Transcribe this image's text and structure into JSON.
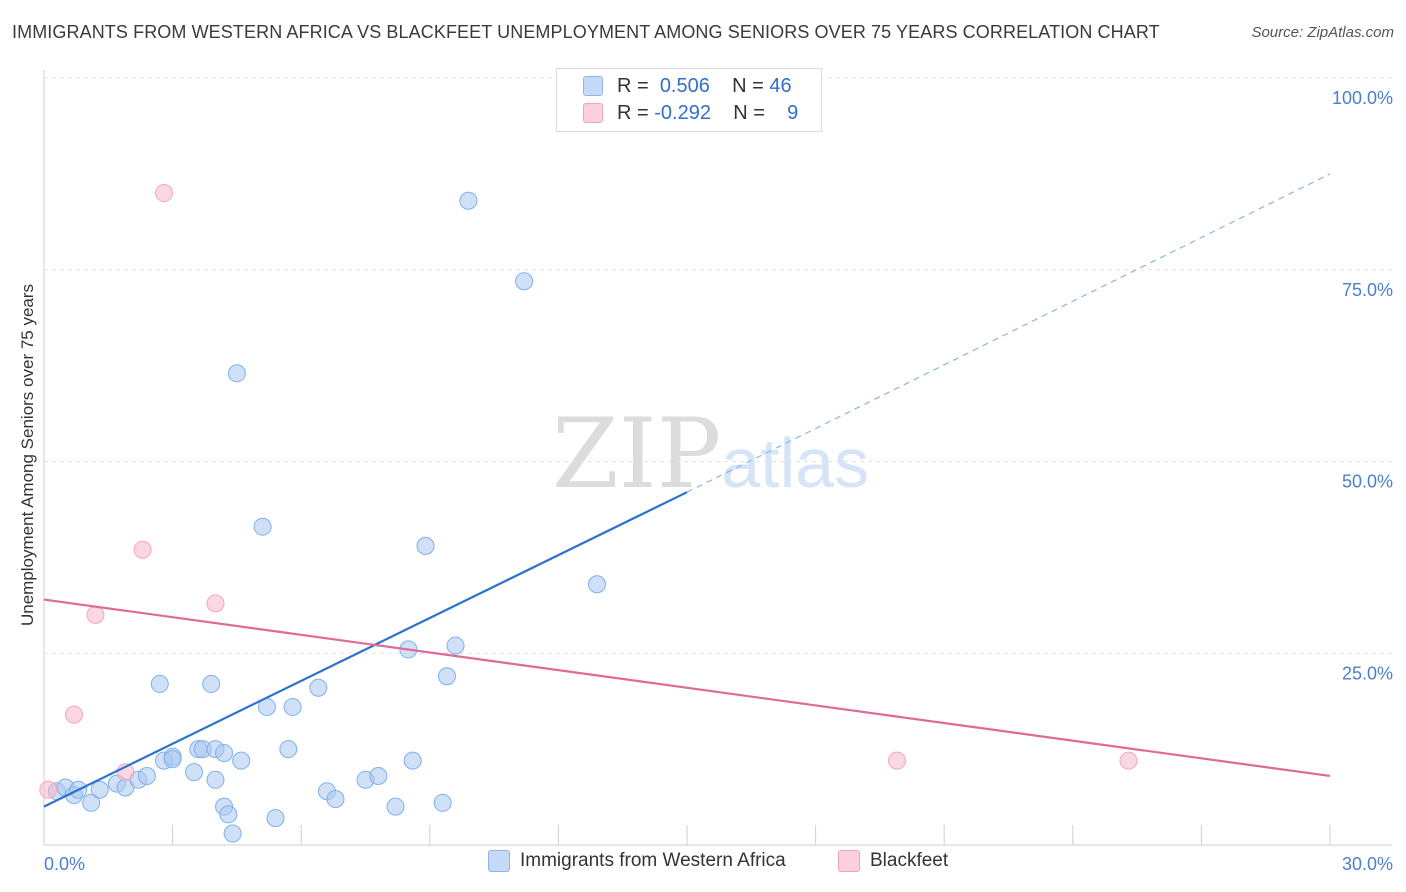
{
  "title": "IMMIGRANTS FROM WESTERN AFRICA VS BLACKFEET UNEMPLOYMENT AMONG SENIORS OVER 75 YEARS CORRELATION CHART",
  "source": "Source: ZipAtlas.com",
  "watermark": {
    "zip": "ZIP",
    "atlas": "atlas"
  },
  "legend": {
    "rows": [
      {
        "r_label": "R =",
        "r_value": "0.506",
        "n_label": "N =",
        "n_value": "46",
        "color": "#a9c8f0"
      },
      {
        "r_label": "R =",
        "r_value": "-0.292",
        "n_label": "N =",
        "n_value": "9",
        "color": "#f6b7c8"
      }
    ]
  },
  "bottom_legend": [
    {
      "label": "Immigrants from Western Africa",
      "color": "#a9c8f0"
    },
    {
      "label": "Blackfeet",
      "color": "#f6b7c8"
    }
  ],
  "chart_data": {
    "type": "scatter",
    "title": "IMMIGRANTS FROM WESTERN AFRICA VS BLACKFEET UNEMPLOYMENT AMONG SENIORS OVER 75 YEARS CORRELATION CHART",
    "xlabel": "",
    "ylabel": "Unemployment Among Seniors over 75 years",
    "xlim": [
      0,
      30
    ],
    "ylim": [
      0,
      100
    ],
    "x_tick_labels": [
      "0.0%",
      "30.0%"
    ],
    "y_ticks": [
      25,
      50,
      75,
      100
    ],
    "y_tick_labels": [
      "25.0%",
      "50.0%",
      "75.0%",
      "100.0%"
    ],
    "grid": true,
    "legend_position": "top-center",
    "series": [
      {
        "name": "Immigrants from Western Africa",
        "color": "#7fb0ea",
        "points": [
          [
            0.3,
            7.0
          ],
          [
            0.5,
            7.5
          ],
          [
            0.7,
            6.5
          ],
          [
            0.8,
            7.2
          ],
          [
            1.1,
            5.5
          ],
          [
            1.3,
            7.2
          ],
          [
            1.7,
            8.0
          ],
          [
            1.9,
            7.5
          ],
          [
            2.2,
            8.5
          ],
          [
            2.4,
            9.0
          ],
          [
            2.7,
            21.0
          ],
          [
            2.8,
            11.0
          ],
          [
            3.0,
            11.5
          ],
          [
            3.0,
            11.2
          ],
          [
            3.5,
            9.5
          ],
          [
            3.6,
            12.5
          ],
          [
            3.7,
            12.5
          ],
          [
            4.0,
            12.5
          ],
          [
            4.2,
            12.0
          ],
          [
            3.9,
            21.0
          ],
          [
            4.0,
            8.5
          ],
          [
            4.4,
            1.5
          ],
          [
            4.5,
            61.5
          ],
          [
            4.2,
            5.0
          ],
          [
            4.3,
            4.0
          ],
          [
            4.6,
            11.0
          ],
          [
            5.2,
            18.0
          ],
          [
            5.1,
            41.5
          ],
          [
            5.4,
            3.5
          ],
          [
            5.7,
            12.5
          ],
          [
            5.8,
            18.0
          ],
          [
            6.4,
            20.5
          ],
          [
            6.6,
            7.0
          ],
          [
            6.8,
            6.0
          ],
          [
            7.5,
            8.5
          ],
          [
            7.8,
            9.0
          ],
          [
            8.2,
            5.0
          ],
          [
            8.5,
            25.5
          ],
          [
            8.6,
            11.0
          ],
          [
            8.9,
            39.0
          ],
          [
            9.3,
            5.5
          ],
          [
            9.4,
            22.0
          ],
          [
            9.6,
            26.0
          ],
          [
            9.9,
            84.0
          ],
          [
            11.2,
            73.5
          ],
          [
            12.9,
            34.0
          ]
        ]
      },
      {
        "name": "Blackfeet",
        "color": "#f4a6bd",
        "points": [
          [
            0.1,
            7.2
          ],
          [
            0.7,
            17.0
          ],
          [
            1.2,
            30.0
          ],
          [
            1.9,
            9.5
          ],
          [
            2.3,
            38.5
          ],
          [
            2.8,
            85.0
          ],
          [
            4.0,
            31.5
          ],
          [
            19.9,
            11.0
          ],
          [
            25.3,
            11.0
          ]
        ]
      }
    ],
    "trend_lines": [
      {
        "series": "Immigrants from Western Africa",
        "color": "#2b72d0",
        "from": [
          0,
          5.0
        ],
        "to": [
          15.0,
          46.0
        ],
        "dashed_to": [
          30.0,
          87.5
        ]
      },
      {
        "series": "Blackfeet",
        "color": "#e06a96",
        "from": [
          0,
          32.0
        ],
        "to": [
          30.0,
          9.0
        ]
      }
    ]
  }
}
